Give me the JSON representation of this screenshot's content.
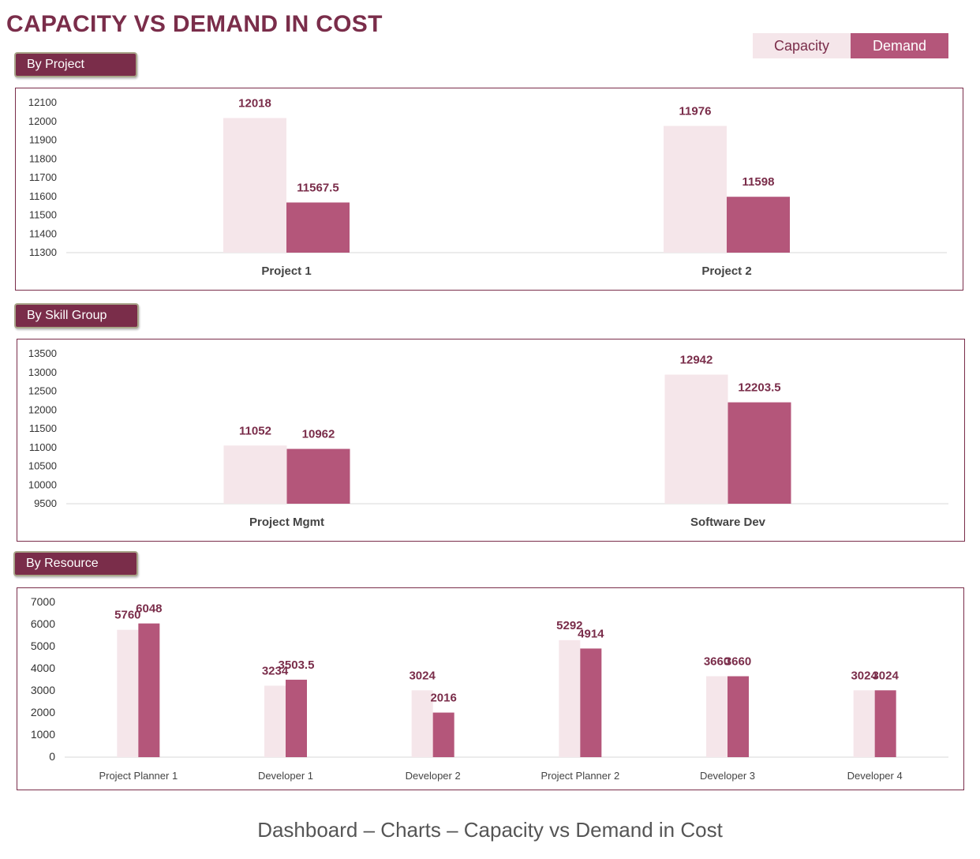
{
  "page": {
    "title": "CAPACITY VS DEMAND IN COST",
    "caption": "Dashboard – Charts – Capacity vs Demand in Cost"
  },
  "legend": {
    "capacity": "Capacity",
    "demand": "Demand"
  },
  "colors": {
    "capacity": "#f5e6ea",
    "demand": "#b4567a",
    "accent": "#7a2d4a",
    "label": "#7a2d4a"
  },
  "sections": {
    "project": "By Project",
    "skill": "By Skill Group",
    "resource": "By Resource"
  },
  "chart_data": [
    {
      "id": "project",
      "type": "bar",
      "title": "By Project",
      "categories": [
        "Project 1",
        "Project 2"
      ],
      "series": [
        {
          "name": "Capacity",
          "values": [
            12018,
            11976
          ]
        },
        {
          "name": "Demand",
          "values": [
            11567.5,
            11598
          ]
        }
      ],
      "ylim": [
        11300,
        12100
      ],
      "yticks": [
        11300,
        11400,
        11500,
        11600,
        11700,
        11800,
        11900,
        12000,
        12100
      ]
    },
    {
      "id": "skill",
      "type": "bar",
      "title": "By Skill Group",
      "categories": [
        "Project Mgmt",
        "Software Dev"
      ],
      "series": [
        {
          "name": "Capacity",
          "values": [
            11052,
            12942
          ]
        },
        {
          "name": "Demand",
          "values": [
            10962,
            12203.5
          ]
        }
      ],
      "ylim": [
        9500,
        13500
      ],
      "yticks": [
        9500,
        10000,
        10500,
        11000,
        11500,
        12000,
        12500,
        13000,
        13500
      ]
    },
    {
      "id": "resource",
      "type": "bar",
      "title": "By Resource",
      "categories": [
        "Project Planner 1",
        "Developer 1",
        "Developer 2",
        "Project Planner 2",
        "Developer 3",
        "Developer 4"
      ],
      "series": [
        {
          "name": "Capacity",
          "values": [
            5760,
            3234,
            3024,
            5292,
            3660,
            3024
          ]
        },
        {
          "name": "Demand",
          "values": [
            6048,
            3503.5,
            2016,
            4914,
            3660,
            3024
          ]
        }
      ],
      "ylim": [
        0,
        7000
      ],
      "yticks": [
        0,
        1000,
        2000,
        3000,
        4000,
        5000,
        6000,
        7000
      ]
    }
  ]
}
